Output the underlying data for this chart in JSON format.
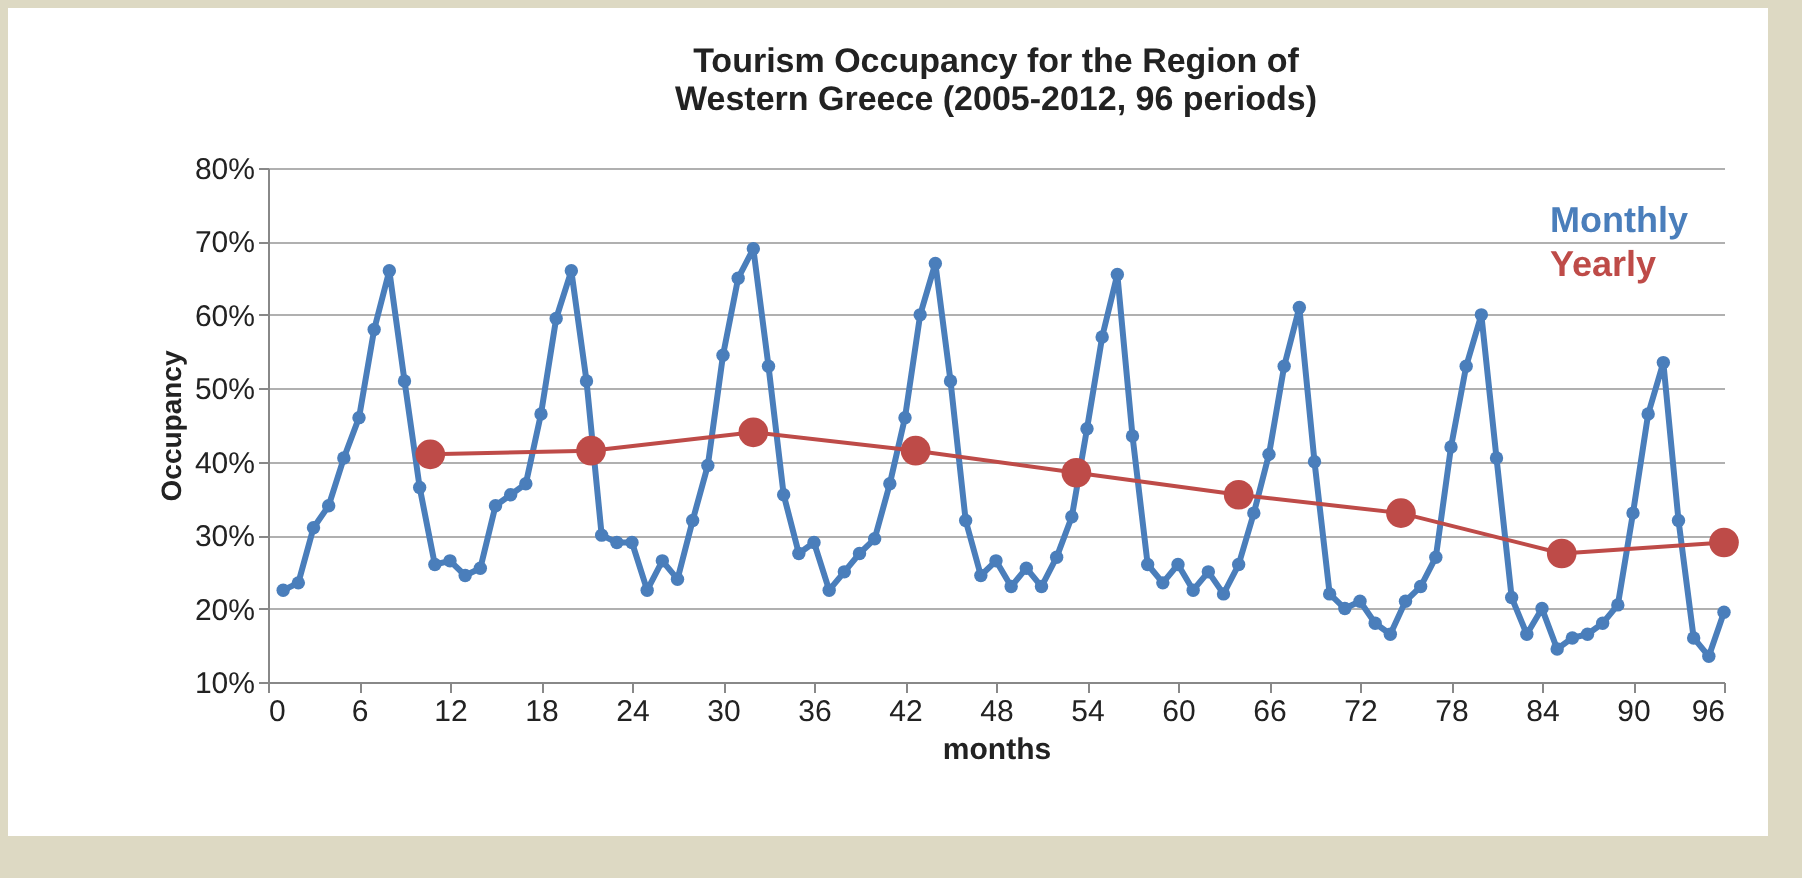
{
  "chart_data": {
    "type": "line",
    "title": "Tourism Occupancy for the Region of\nWestern Greece (2005-2012, 96 periods)",
    "xlabel": "months",
    "ylabel": "Occupancy",
    "xlim": [
      0,
      96
    ],
    "xticks": [
      0,
      6,
      12,
      18,
      24,
      30,
      36,
      42,
      48,
      54,
      60,
      66,
      72,
      78,
      84,
      90,
      96
    ],
    "ylim": [
      10,
      80
    ],
    "yticks": [
      {
        "value": 10,
        "label": "10%"
      },
      {
        "value": 20,
        "label": "20%"
      },
      {
        "value": 30,
        "label": "30%"
      },
      {
        "value": 40,
        "label": "40%"
      },
      {
        "value": 50,
        "label": "50%"
      },
      {
        "value": 60,
        "label": "60%"
      },
      {
        "value": 70,
        "label": "70%"
      },
      {
        "value": 80,
        "label": "80%"
      }
    ],
    "grid": "y",
    "legend": "top right",
    "marker": "circle",
    "line_style": "solid",
    "series": [
      {
        "name": "Monthly",
        "color": "#4a7ebb",
        "x": [
          1,
          2,
          3,
          4,
          5,
          6,
          7,
          8,
          9,
          10,
          11,
          12,
          13,
          14,
          15,
          16,
          17,
          18,
          19,
          20,
          21,
          22,
          23,
          24,
          25,
          26,
          27,
          28,
          29,
          30,
          31,
          32,
          33,
          34,
          35,
          36,
          37,
          38,
          39,
          40,
          41,
          42,
          43,
          44,
          45,
          46,
          47,
          48,
          49,
          50,
          51,
          52,
          53,
          54,
          55,
          56,
          57,
          58,
          59,
          60,
          61,
          62,
          63,
          64,
          65,
          66,
          67,
          68,
          69,
          70,
          71,
          72,
          73,
          74,
          75,
          76,
          77,
          78,
          79,
          80,
          81,
          82,
          83,
          84,
          85,
          86,
          87,
          88,
          89,
          90,
          91,
          92,
          93,
          94,
          95,
          96
        ],
        "values": [
          22.5,
          23.5,
          31,
          34,
          40.5,
          46,
          58,
          66,
          51,
          36.5,
          26,
          26.5,
          24.5,
          25.5,
          34,
          35.5,
          37,
          46.5,
          59.5,
          66,
          51,
          30,
          29,
          29,
          22.5,
          26.5,
          24,
          32,
          39.5,
          54.5,
          65,
          69,
          53,
          35.5,
          27.5,
          29,
          22.5,
          25,
          27.5,
          29.5,
          37,
          46,
          60,
          67,
          51,
          32,
          24.5,
          26.5,
          23,
          25.5,
          23,
          27,
          32.5,
          44.5,
          57,
          65.5,
          43.5,
          26,
          23.5,
          26,
          22.5,
          25,
          22,
          26,
          33,
          41,
          53,
          61,
          40,
          22,
          20,
          21,
          18,
          16.5,
          21,
          23,
          27,
          42,
          53,
          60,
          40.5,
          21.5,
          16.5,
          20,
          14.5,
          16,
          16.5,
          18,
          20.5,
          33,
          46.5,
          53.5,
          32,
          16,
          13.5,
          19.5
        ]
      },
      {
        "name": "Yearly",
        "color": "#be4b48",
        "x": [
          10.7,
          21.3,
          32,
          42.7,
          53.3,
          64,
          74.7,
          85.3,
          96
        ],
        "values": [
          41,
          41.5,
          44,
          41.5,
          38.5,
          35.5,
          33,
          27.5,
          29
        ]
      }
    ]
  }
}
